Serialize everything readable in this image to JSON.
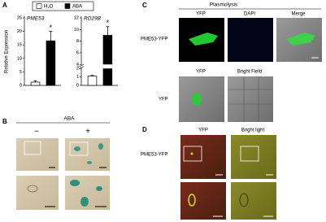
{
  "panel_labels": [
    "A",
    "B",
    "C",
    "D"
  ],
  "legend": [
    {
      "name": "H₂O",
      "color": "#ffffff"
    },
    {
      "name": "ABA",
      "color": "#000000"
    }
  ],
  "chart_data": [
    {
      "type": "bar",
      "title": "PME53",
      "ylabel": "Relative Expression",
      "values": [
        1.2,
        16.5
      ],
      "errors": [
        0.5,
        3.5
      ],
      "annotation": "*",
      "ylim": [
        0,
        25
      ],
      "yticks": [
        0,
        5,
        10,
        15,
        20,
        25
      ]
    },
    {
      "type": "bar",
      "title": "RD29B",
      "values": [
        1.1,
        9
      ],
      "errors": [
        0.1,
        1.5
      ],
      "annotation": "*",
      "ylim": [
        0,
        12
      ],
      "axis_break": [
        2,
        4
      ],
      "yticks": [
        0,
        1,
        2,
        4,
        6,
        8,
        10,
        12
      ]
    }
  ],
  "panel_b": {
    "title": "ABA",
    "columns": [
      "−",
      "+"
    ]
  },
  "panel_c": {
    "title": "Plasmolysis",
    "row1": {
      "label": "PME53-YFP",
      "columns": [
        "YFP",
        "DAPI",
        "Merge"
      ]
    },
    "row2": {
      "label": "YFP",
      "columns": [
        "YFP",
        "Bright Field"
      ]
    }
  },
  "panel_d": {
    "row_label": "PME53-YFP",
    "columns": [
      "YFP",
      "Bright light"
    ]
  }
}
